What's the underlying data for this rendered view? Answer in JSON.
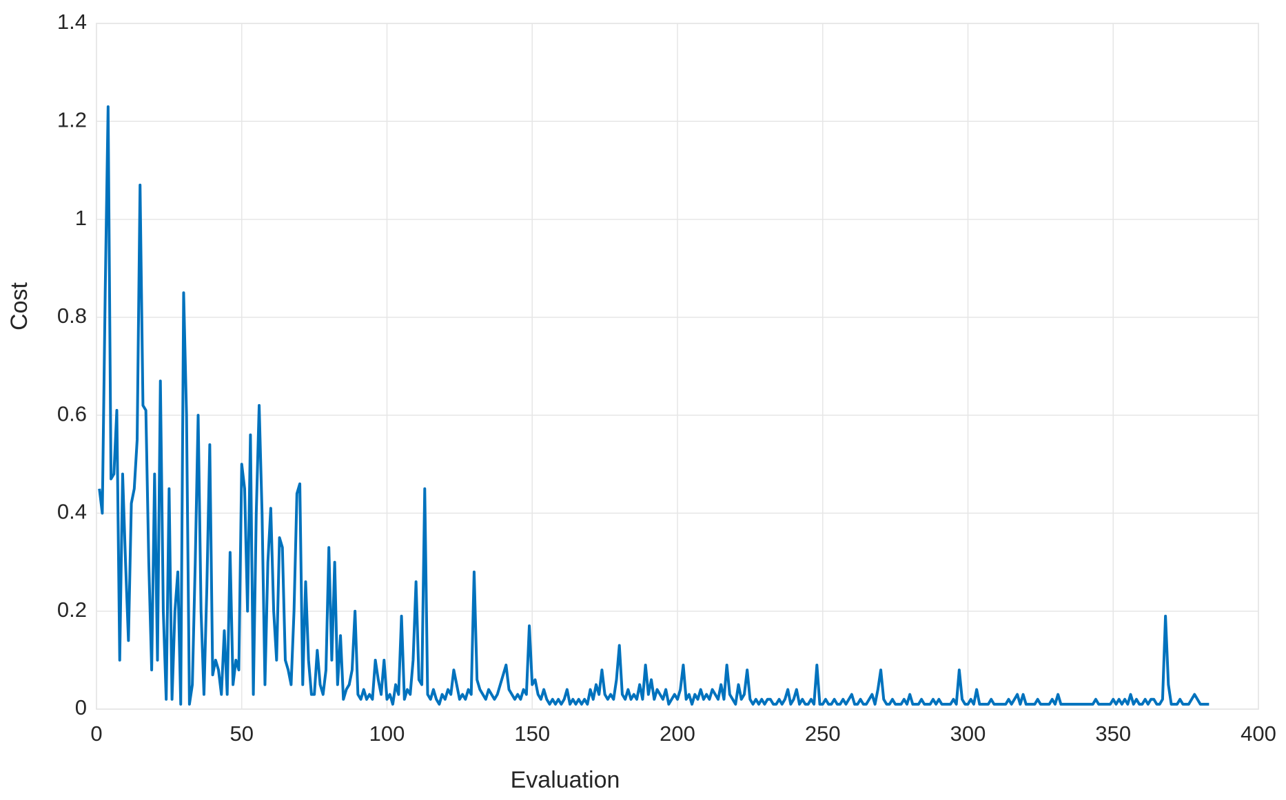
{
  "chart_data": {
    "type": "line",
    "xlabel": "Evaluation",
    "ylabel": "Cost",
    "xlim": [
      0,
      400
    ],
    "xticks": [
      0,
      50,
      100,
      150,
      200,
      250,
      300,
      350,
      400
    ],
    "ylim": [
      0,
      1.4
    ],
    "yticks": [
      0,
      0.2,
      0.4,
      0.6,
      0.8,
      1,
      1.2,
      1.4
    ],
    "grid": true,
    "x": [
      1,
      2,
      3,
      4,
      5,
      6,
      7,
      8,
      9,
      10,
      11,
      12,
      13,
      14,
      15,
      16,
      17,
      18,
      19,
      20,
      21,
      22,
      23,
      24,
      25,
      26,
      27,
      28,
      29,
      30,
      31,
      32,
      33,
      34,
      35,
      36,
      37,
      38,
      39,
      40,
      41,
      42,
      43,
      44,
      45,
      46,
      47,
      48,
      49,
      50,
      51,
      52,
      53,
      54,
      55,
      56,
      57,
      58,
      59,
      60,
      61,
      62,
      63,
      64,
      65,
      66,
      67,
      68,
      69,
      70,
      71,
      72,
      73,
      74,
      75,
      76,
      77,
      78,
      79,
      80,
      81,
      82,
      83,
      84,
      85,
      86,
      87,
      88,
      89,
      90,
      91,
      92,
      93,
      94,
      95,
      96,
      97,
      98,
      99,
      100,
      101,
      102,
      103,
      104,
      105,
      106,
      107,
      108,
      109,
      110,
      111,
      112,
      113,
      114,
      115,
      116,
      117,
      118,
      119,
      120,
      121,
      122,
      123,
      124,
      125,
      126,
      127,
      128,
      129,
      130,
      131,
      132,
      133,
      134,
      135,
      136,
      137,
      138,
      139,
      140,
      141,
      142,
      143,
      144,
      145,
      146,
      147,
      148,
      149,
      150,
      151,
      152,
      153,
      154,
      155,
      156,
      157,
      158,
      159,
      160,
      161,
      162,
      163,
      164,
      165,
      166,
      167,
      168,
      169,
      170,
      171,
      172,
      173,
      174,
      175,
      176,
      177,
      178,
      179,
      180,
      181,
      182,
      183,
      184,
      185,
      186,
      187,
      188,
      189,
      190,
      191,
      192,
      193,
      194,
      195,
      196,
      197,
      198,
      199,
      200,
      201,
      202,
      203,
      204,
      205,
      206,
      207,
      208,
      209,
      210,
      211,
      212,
      213,
      214,
      215,
      216,
      217,
      218,
      219,
      220,
      221,
      222,
      223,
      224,
      225,
      226,
      227,
      228,
      229,
      230,
      231,
      232,
      233,
      234,
      235,
      236,
      237,
      238,
      239,
      240,
      241,
      242,
      243,
      244,
      245,
      246,
      247,
      248,
      249,
      250,
      251,
      252,
      253,
      254,
      255,
      256,
      257,
      258,
      259,
      260,
      261,
      262,
      263,
      264,
      265,
      266,
      267,
      268,
      269,
      270,
      271,
      272,
      273,
      274,
      275,
      276,
      277,
      278,
      279,
      280,
      281,
      282,
      283,
      284,
      285,
      286,
      287,
      288,
      289,
      290,
      291,
      292,
      293,
      294,
      295,
      296,
      297,
      298,
      299,
      300,
      301,
      302,
      303,
      304,
      305,
      306,
      307,
      308,
      309,
      310,
      311,
      312,
      313,
      314,
      315,
      316,
      317,
      318,
      319,
      320,
      321,
      322,
      323,
      324,
      325,
      326,
      327,
      328,
      329,
      330,
      331,
      332,
      333,
      334,
      335,
      336,
      337,
      338,
      339,
      340,
      341,
      342,
      343,
      344,
      345,
      346,
      347,
      348,
      349,
      350,
      351,
      352,
      353,
      354,
      355,
      356,
      357,
      358,
      359,
      360,
      361,
      362,
      363,
      364,
      365,
      366,
      367,
      368,
      369,
      370,
      371,
      372,
      373,
      374,
      375,
      376,
      377,
      378,
      379,
      380,
      381,
      382,
      383
    ],
    "series": [
      {
        "color": "#0072bd",
        "values": [
          0.45,
          0.4,
          0.85,
          1.23,
          0.47,
          0.48,
          0.61,
          0.1,
          0.48,
          0.3,
          0.14,
          0.42,
          0.45,
          0.55,
          1.07,
          0.62,
          0.61,
          0.3,
          0.08,
          0.48,
          0.1,
          0.67,
          0.2,
          0.02,
          0.45,
          0.02,
          0.2,
          0.28,
          0.01,
          0.85,
          0.6,
          0.01,
          0.05,
          0.3,
          0.6,
          0.2,
          0.03,
          0.25,
          0.54,
          0.07,
          0.1,
          0.08,
          0.03,
          0.16,
          0.03,
          0.32,
          0.05,
          0.1,
          0.08,
          0.5,
          0.45,
          0.2,
          0.56,
          0.03,
          0.4,
          0.62,
          0.4,
          0.05,
          0.3,
          0.41,
          0.2,
          0.1,
          0.35,
          0.33,
          0.1,
          0.08,
          0.05,
          0.2,
          0.44,
          0.46,
          0.05,
          0.26,
          0.1,
          0.03,
          0.03,
          0.12,
          0.05,
          0.03,
          0.08,
          0.33,
          0.1,
          0.3,
          0.05,
          0.15,
          0.02,
          0.04,
          0.05,
          0.08,
          0.2,
          0.03,
          0.02,
          0.04,
          0.02,
          0.03,
          0.02,
          0.1,
          0.06,
          0.03,
          0.1,
          0.02,
          0.03,
          0.01,
          0.05,
          0.03,
          0.19,
          0.02,
          0.04,
          0.03,
          0.1,
          0.26,
          0.06,
          0.05,
          0.45,
          0.03,
          0.02,
          0.04,
          0.02,
          0.01,
          0.03,
          0.02,
          0.04,
          0.03,
          0.08,
          0.05,
          0.02,
          0.03,
          0.02,
          0.04,
          0.03,
          0.28,
          0.06,
          0.04,
          0.03,
          0.02,
          0.04,
          0.03,
          0.02,
          0.03,
          0.05,
          0.07,
          0.09,
          0.04,
          0.03,
          0.02,
          0.03,
          0.02,
          0.04,
          0.03,
          0.17,
          0.05,
          0.06,
          0.03,
          0.02,
          0.04,
          0.02,
          0.01,
          0.02,
          0.01,
          0.02,
          0.01,
          0.02,
          0.04,
          0.01,
          0.02,
          0.01,
          0.02,
          0.01,
          0.02,
          0.01,
          0.04,
          0.02,
          0.05,
          0.03,
          0.08,
          0.03,
          0.02,
          0.03,
          0.02,
          0.06,
          0.13,
          0.03,
          0.02,
          0.04,
          0.02,
          0.03,
          0.02,
          0.05,
          0.02,
          0.09,
          0.03,
          0.06,
          0.02,
          0.04,
          0.03,
          0.02,
          0.04,
          0.01,
          0.02,
          0.03,
          0.02,
          0.04,
          0.09,
          0.02,
          0.03,
          0.01,
          0.03,
          0.02,
          0.04,
          0.02,
          0.03,
          0.02,
          0.04,
          0.03,
          0.02,
          0.05,
          0.02,
          0.09,
          0.03,
          0.02,
          0.01,
          0.05,
          0.02,
          0.03,
          0.08,
          0.02,
          0.01,
          0.02,
          0.01,
          0.02,
          0.01,
          0.02,
          0.02,
          0.01,
          0.01,
          0.02,
          0.01,
          0.02,
          0.04,
          0.01,
          0.02,
          0.04,
          0.01,
          0.02,
          0.01,
          0.01,
          0.02,
          0.01,
          0.09,
          0.01,
          0.01,
          0.02,
          0.01,
          0.01,
          0.02,
          0.01,
          0.01,
          0.02,
          0.01,
          0.02,
          0.03,
          0.01,
          0.01,
          0.02,
          0.01,
          0.01,
          0.02,
          0.03,
          0.01,
          0.04,
          0.08,
          0.02,
          0.01,
          0.01,
          0.02,
          0.01,
          0.01,
          0.01,
          0.02,
          0.01,
          0.03,
          0.01,
          0.01,
          0.01,
          0.02,
          0.01,
          0.01,
          0.01,
          0.02,
          0.01,
          0.02,
          0.01,
          0.01,
          0.01,
          0.01,
          0.02,
          0.01,
          0.08,
          0.02,
          0.01,
          0.01,
          0.02,
          0.01,
          0.04,
          0.01,
          0.01,
          0.01,
          0.01,
          0.02,
          0.01,
          0.01,
          0.01,
          0.01,
          0.01,
          0.02,
          0.01,
          0.02,
          0.03,
          0.01,
          0.03,
          0.01,
          0.01,
          0.01,
          0.01,
          0.02,
          0.01,
          0.01,
          0.01,
          0.01,
          0.02,
          0.01,
          0.03,
          0.01,
          0.01,
          0.01,
          0.01,
          0.01,
          0.01,
          0.01,
          0.01,
          0.01,
          0.01,
          0.01,
          0.01,
          0.02,
          0.01,
          0.01,
          0.01,
          0.01,
          0.01,
          0.02,
          0.01,
          0.02,
          0.01,
          0.02,
          0.01,
          0.03,
          0.01,
          0.02,
          0.01,
          0.01,
          0.02,
          0.01,
          0.02,
          0.02,
          0.01,
          0.01,
          0.02,
          0.19,
          0.05,
          0.01,
          0.01,
          0.01,
          0.02,
          0.01,
          0.01,
          0.01,
          0.02,
          0.03,
          0.02,
          0.01,
          0.01,
          0.01,
          0.01
        ]
      }
    ]
  }
}
